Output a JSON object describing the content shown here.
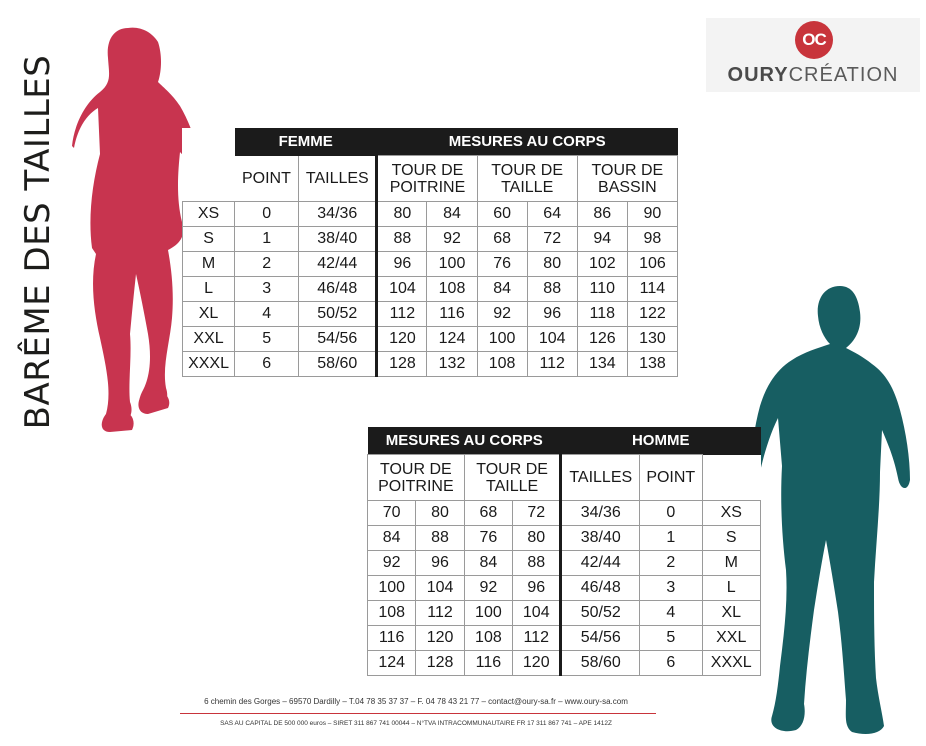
{
  "title": "BARÊME DES TAILLES",
  "logo": {
    "initials": "OC",
    "brand_bold": "OURY",
    "brand_light": "CRÉATION",
    "accent": "#c8343b"
  },
  "colors": {
    "woman": "#c8344f",
    "man": "#175e62",
    "header": "#1b1b1b"
  },
  "femme": {
    "header_left": "FEMME",
    "header_right": "MESURES AU CORPS",
    "col_point": "POINT",
    "col_tailles": "TAILLES",
    "col_poitrine": [
      "TOUR DE",
      "POITRINE"
    ],
    "col_taille": [
      "TOUR DE",
      "TAILLE"
    ],
    "col_bassin": [
      "TOUR DE",
      "BASSIN"
    ],
    "rows": [
      {
        "size": "XS",
        "point": "0",
        "taille": "34/36",
        "poitrine": [
          "80",
          "84"
        ],
        "tour_taille": [
          "60",
          "64"
        ],
        "bassin": [
          "86",
          "90"
        ]
      },
      {
        "size": "S",
        "point": "1",
        "taille": "38/40",
        "poitrine": [
          "88",
          "92"
        ],
        "tour_taille": [
          "68",
          "72"
        ],
        "bassin": [
          "94",
          "98"
        ]
      },
      {
        "size": "M",
        "point": "2",
        "taille": "42/44",
        "poitrine": [
          "96",
          "100"
        ],
        "tour_taille": [
          "76",
          "80"
        ],
        "bassin": [
          "102",
          "106"
        ]
      },
      {
        "size": "L",
        "point": "3",
        "taille": "46/48",
        "poitrine": [
          "104",
          "108"
        ],
        "tour_taille": [
          "84",
          "88"
        ],
        "bassin": [
          "110",
          "114"
        ]
      },
      {
        "size": "XL",
        "point": "4",
        "taille": "50/52",
        "poitrine": [
          "112",
          "116"
        ],
        "tour_taille": [
          "92",
          "96"
        ],
        "bassin": [
          "118",
          "122"
        ]
      },
      {
        "size": "XXL",
        "point": "5",
        "taille": "54/56",
        "poitrine": [
          "120",
          "124"
        ],
        "tour_taille": [
          "100",
          "104"
        ],
        "bassin": [
          "126",
          "130"
        ]
      },
      {
        "size": "XXXL",
        "point": "6",
        "taille": "58/60",
        "poitrine": [
          "128",
          "132"
        ],
        "tour_taille": [
          "108",
          "112"
        ],
        "bassin": [
          "134",
          "138"
        ]
      }
    ]
  },
  "homme": {
    "header_left": "MESURES AU CORPS",
    "header_right": "HOMME",
    "col_poitrine": [
      "TOUR DE",
      "POITRINE"
    ],
    "col_taille": [
      "TOUR DE",
      "TAILLE"
    ],
    "col_tailles": "TAILLES",
    "col_point": "POINT",
    "rows": [
      {
        "poitrine": [
          "70",
          "80"
        ],
        "tour_taille": [
          "68",
          "72"
        ],
        "taille": "34/36",
        "point": "0",
        "size": "XS"
      },
      {
        "poitrine": [
          "84",
          "88"
        ],
        "tour_taille": [
          "76",
          "80"
        ],
        "taille": "38/40",
        "point": "1",
        "size": "S"
      },
      {
        "poitrine": [
          "92",
          "96"
        ],
        "tour_taille": [
          "84",
          "88"
        ],
        "taille": "42/44",
        "point": "2",
        "size": "M"
      },
      {
        "poitrine": [
          "100",
          "104"
        ],
        "tour_taille": [
          "92",
          "96"
        ],
        "taille": "46/48",
        "point": "3",
        "size": "L"
      },
      {
        "poitrine": [
          "108",
          "112"
        ],
        "tour_taille": [
          "100",
          "104"
        ],
        "taille": "50/52",
        "point": "4",
        "size": "XL"
      },
      {
        "poitrine": [
          "116",
          "120"
        ],
        "tour_taille": [
          "108",
          "112"
        ],
        "taille": "54/56",
        "point": "5",
        "size": "XXL"
      },
      {
        "poitrine": [
          "124",
          "128"
        ],
        "tour_taille": [
          "116",
          "120"
        ],
        "taille": "58/60",
        "point": "6",
        "size": "XXXL"
      }
    ]
  },
  "footer": {
    "line1": "6 chemin des Gorges – 69570 Dardilly – T.04 78 35 37 37 – F. 04 78 43 21 77 – contact@oury-sa.fr – www.oury-sa.com",
    "line2": "SAS AU CAPITAL DE 500 000  euros – SIRET 311 867 741 00044 – N°TVA INTRACOMMUNAUTAIRE FR 17 311 867 741 – APE 1412Z"
  }
}
